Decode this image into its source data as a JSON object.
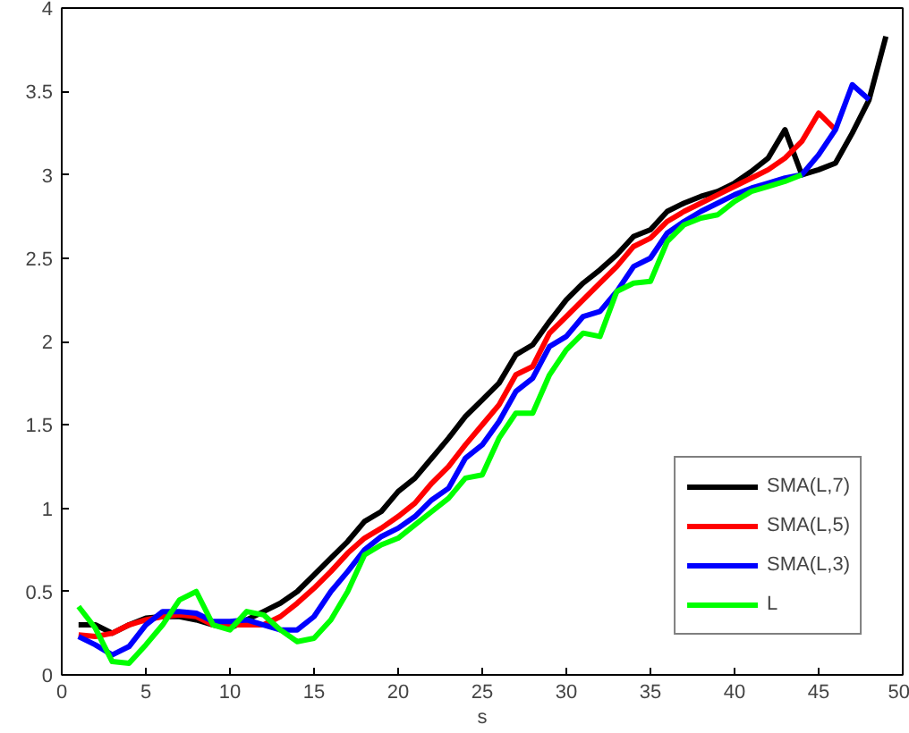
{
  "chart_data": {
    "type": "line",
    "xlabel": "s",
    "xlim": [
      0,
      50
    ],
    "xticks": [
      0,
      5,
      10,
      15,
      20,
      25,
      30,
      35,
      40,
      45,
      50
    ],
    "ylim": [
      0,
      4
    ],
    "yticks": [
      0,
      0.5,
      1,
      1.5,
      2,
      2.5,
      3,
      3.5,
      4
    ],
    "grid": false,
    "legend": "bottom right",
    "line_style": "solid",
    "marker": "none",
    "series": [
      {
        "name": "SMA(L,7)",
        "color": "#000000",
        "x": [
          1,
          2,
          3,
          4,
          5,
          6,
          7,
          8,
          9,
          10,
          11,
          12,
          13,
          14,
          15,
          16,
          17,
          18,
          19,
          20,
          21,
          22,
          23,
          24,
          25,
          26,
          27,
          28,
          29,
          30,
          31,
          32,
          33,
          34,
          35,
          36,
          37,
          38,
          39,
          40,
          41,
          42,
          43,
          44,
          45,
          46,
          47,
          48,
          49
        ],
        "values": [
          0.3,
          0.3,
          0.25,
          0.3,
          0.34,
          0.35,
          0.35,
          0.33,
          0.3,
          0.28,
          0.33,
          0.38,
          0.43,
          0.5,
          0.6,
          0.7,
          0.8,
          0.92,
          0.98,
          1.1,
          1.18,
          1.3,
          1.42,
          1.55,
          1.65,
          1.75,
          1.92,
          1.98,
          2.12,
          2.25,
          2.35,
          2.43,
          2.52,
          2.63,
          2.67,
          2.78,
          2.83,
          2.87,
          2.9,
          2.95,
          3.02,
          3.1,
          3.27,
          3.0,
          3.03,
          3.07,
          3.25,
          3.45,
          3.83
        ]
      },
      {
        "name": "SMA(L,5)",
        "color": "#ff0000",
        "x": [
          1,
          2,
          3,
          4,
          5,
          6,
          7,
          8,
          9,
          10,
          11,
          12,
          13,
          14,
          15,
          16,
          17,
          18,
          19,
          20,
          21,
          22,
          23,
          24,
          25,
          26,
          27,
          28,
          29,
          30,
          31,
          32,
          33,
          34,
          35,
          36,
          37,
          38,
          39,
          40,
          41,
          42,
          43,
          44,
          45,
          46
        ],
        "values": [
          0.24,
          0.23,
          0.25,
          0.3,
          0.33,
          0.35,
          0.36,
          0.35,
          0.3,
          0.3,
          0.3,
          0.3,
          0.35,
          0.43,
          0.52,
          0.62,
          0.73,
          0.82,
          0.88,
          0.95,
          1.03,
          1.15,
          1.25,
          1.38,
          1.5,
          1.62,
          1.8,
          1.85,
          2.05,
          2.15,
          2.25,
          2.35,
          2.45,
          2.57,
          2.62,
          2.72,
          2.78,
          2.83,
          2.88,
          2.93,
          2.98,
          3.03,
          3.1,
          3.2,
          3.37,
          3.27
        ]
      },
      {
        "name": "SMA(L,3)",
        "color": "#0000ff",
        "x": [
          1,
          2,
          3,
          4,
          5,
          6,
          7,
          8,
          9,
          10,
          11,
          12,
          13,
          14,
          15,
          16,
          17,
          18,
          19,
          20,
          21,
          22,
          23,
          24,
          25,
          26,
          27,
          28,
          29,
          30,
          31,
          32,
          33,
          34,
          35,
          36,
          37,
          38,
          39,
          40,
          41,
          42,
          43,
          44,
          45,
          46,
          47,
          48
        ],
        "values": [
          0.23,
          0.18,
          0.12,
          0.17,
          0.3,
          0.38,
          0.38,
          0.37,
          0.32,
          0.32,
          0.33,
          0.3,
          0.27,
          0.27,
          0.35,
          0.5,
          0.62,
          0.75,
          0.83,
          0.88,
          0.95,
          1.05,
          1.12,
          1.3,
          1.38,
          1.52,
          1.7,
          1.78,
          1.97,
          2.03,
          2.15,
          2.18,
          2.3,
          2.45,
          2.5,
          2.65,
          2.72,
          2.78,
          2.83,
          2.88,
          2.92,
          2.95,
          2.98,
          3.0,
          3.12,
          3.27,
          3.54,
          3.45
        ]
      },
      {
        "name": "L",
        "color": "#00ff00",
        "x": [
          1,
          2,
          3,
          4,
          5,
          6,
          7,
          8,
          9,
          10,
          11,
          12,
          13,
          14,
          15,
          16,
          17,
          18,
          19,
          20,
          21,
          22,
          23,
          24,
          25,
          26,
          27,
          28,
          29,
          30,
          31,
          32,
          33,
          34,
          35,
          36,
          37,
          38,
          39,
          40,
          41,
          42,
          43,
          44
        ],
        "values": [
          0.41,
          0.28,
          0.08,
          0.07,
          0.18,
          0.3,
          0.45,
          0.5,
          0.3,
          0.27,
          0.38,
          0.36,
          0.27,
          0.2,
          0.22,
          0.33,
          0.5,
          0.72,
          0.78,
          0.82,
          0.9,
          0.98,
          1.06,
          1.18,
          1.2,
          1.42,
          1.57,
          1.57,
          1.8,
          1.95,
          2.05,
          2.03,
          2.3,
          2.35,
          2.36,
          2.6,
          2.7,
          2.74,
          2.76,
          2.84,
          2.9,
          2.93,
          2.96,
          3.0
        ]
      }
    ]
  }
}
